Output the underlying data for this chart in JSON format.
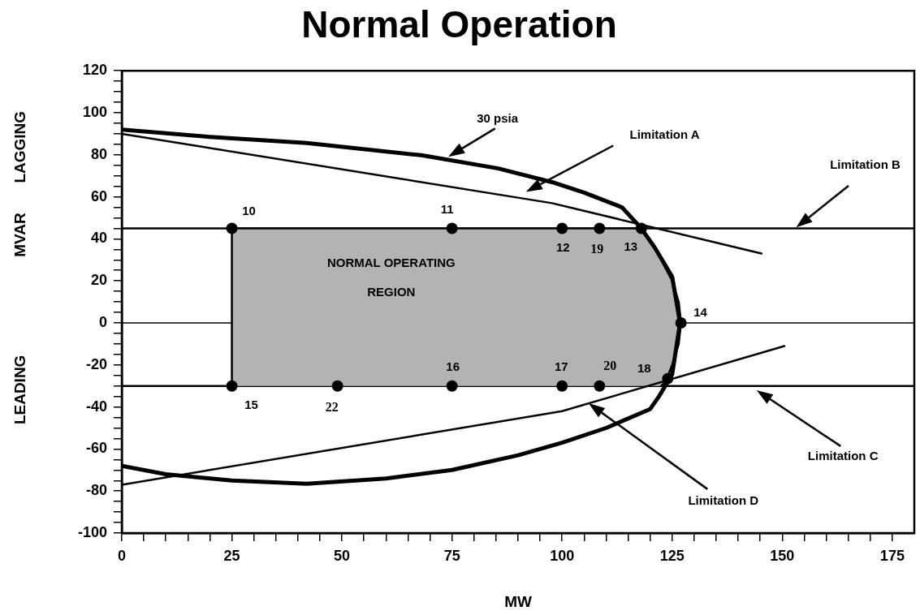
{
  "chart_data": {
    "type": "line",
    "title": "Normal Operation",
    "xlabel": "MW",
    "ylabel": "LAGGING MVAR LEADING",
    "xlim": [
      0,
      180
    ],
    "ylim": [
      -100,
      120
    ],
    "xticks": [
      0,
      {
        "value": 5,
        "label": null
      },
      {
        "value": 10,
        "label": null
      },
      {
        "value": 15,
        "label": null
      },
      {
        "value": 20,
        "label": null
      },
      25,
      {
        "value": 30,
        "label": null
      },
      {
        "value": 35,
        "label": null
      },
      {
        "value": 40,
        "label": null
      },
      {
        "value": 45,
        "label": null
      },
      50,
      {
        "value": 55,
        "label": null
      },
      {
        "value": 60,
        "label": null
      },
      {
        "value": 65,
        "label": null
      },
      {
        "value": 70,
        "label": null
      },
      75,
      {
        "value": 80,
        "label": null
      },
      {
        "value": 85,
        "label": null
      },
      {
        "value": 90,
        "label": null
      },
      {
        "value": 95,
        "label": null
      },
      100,
      {
        "value": 105,
        "label": null
      },
      {
        "value": 110,
        "label": null
      },
      {
        "value": 115,
        "label": null
      },
      {
        "value": 120,
        "label": null
      },
      125,
      {
        "value": 130,
        "label": null
      },
      {
        "value": 135,
        "label": null
      },
      {
        "value": 140,
        "label": null
      },
      {
        "value": 145,
        "label": null
      },
      150,
      {
        "value": 155,
        "label": null
      },
      {
        "value": 160,
        "label": null
      },
      {
        "value": 165,
        "label": null
      },
      {
        "value": 170,
        "label": null
      },
      175
    ],
    "yticks": [
      -100,
      {
        "value": -95,
        "label": null
      },
      {
        "value": -90,
        "label": null
      },
      {
        "value": -85,
        "label": null
      },
      -80,
      {
        "value": -75,
        "label": null
      },
      {
        "value": -70,
        "label": null
      },
      {
        "value": -65,
        "label": null
      },
      -60,
      {
        "value": -55,
        "label": null
      },
      {
        "value": -50,
        "label": null
      },
      {
        "value": -45,
        "label": null
      },
      -40,
      {
        "value": -35,
        "label": null
      },
      {
        "value": -30,
        "label": null
      },
      {
        "value": -25,
        "label": null
      },
      -20,
      {
        "value": -15,
        "label": null
      },
      {
        "value": -10,
        "label": null
      },
      {
        "value": -5,
        "label": null
      },
      0,
      {
        "value": 5,
        "label": null
      },
      {
        "value": 10,
        "label": null
      },
      {
        "value": 15,
        "label": null
      },
      20,
      {
        "value": 25,
        "label": null
      },
      {
        "value": 30,
        "label": null
      },
      {
        "value": 35,
        "label": null
      },
      40,
      {
        "value": 45,
        "label": null
      },
      {
        "value": 50,
        "label": null
      },
      {
        "value": 55,
        "label": null
      },
      60,
      {
        "value": 65,
        "label": null
      },
      {
        "value": 70,
        "label": null
      },
      {
        "value": 75,
        "label": null
      },
      80,
      {
        "value": 85,
        "label": null
      },
      {
        "value": 90,
        "label": null
      },
      {
        "value": 95,
        "label": null
      },
      100,
      {
        "value": 105,
        "label": null
      },
      {
        "value": 110,
        "label": null
      },
      {
        "value": 115,
        "label": null
      },
      120
    ],
    "series": [
      {
        "type": "area",
        "color": "#b3b3b3",
        "x": [
          25,
          25,
          118,
          121,
          123,
          125,
          126.5,
          127,
          126.5,
          125,
          123.5,
          122.5
        ],
        "values": [
          -30,
          45,
          45,
          36,
          28,
          20,
          10,
          0,
          -10,
          -20,
          -28,
          -30
        ]
      },
      {
        "type": "line",
        "color": "#000000",
        "x": [
          0,
          20,
          42,
          68,
          85.5,
          97.7,
          105,
          113.6,
          117.8,
          121,
          125,
          126.8,
          125,
          124,
          122,
          120,
          110,
          100,
          90,
          75,
          60,
          42,
          25,
          10,
          0
        ],
        "values": [
          92,
          88.5,
          85.6,
          79.8,
          73.5,
          67,
          62,
          55,
          45.5,
          36,
          22,
          0,
          -24.5,
          -28,
          -35,
          -41,
          -50,
          -57,
          -63,
          -70,
          -74,
          -76.5,
          -75,
          -72,
          -68
        ]
      },
      {
        "type": "line",
        "color": "#000000",
        "x": [
          0,
          97.7,
          145.3
        ],
        "values": [
          90,
          57,
          33
        ]
      },
      {
        "type": "line",
        "color": "#000000",
        "x": [
          0,
          100,
          150.5
        ],
        "values": [
          -77,
          -42,
          -11
        ]
      },
      {
        "type": "scatter",
        "color": "#000000",
        "marker": "circle",
        "x": [
          25,
          75,
          100,
          108.5,
          118,
          127,
          25,
          49,
          75,
          100,
          108.5,
          124
        ],
        "values": [
          45,
          45,
          45,
          45,
          45,
          0,
          -30,
          -30,
          -30,
          -30,
          -30,
          -26.5
        ]
      }
    ],
    "ref_lines": [
      {
        "axis": "y",
        "value": 0,
        "color": "#000000"
      },
      {
        "axis": "y",
        "value": 45,
        "color": "#000000"
      },
      {
        "axis": "y",
        "value": -30,
        "color": "#000000"
      }
    ],
    "annotations": [
      "30 psia",
      "Limitation A",
      "Limitation D",
      "NORMAL OPERATING REGION",
      {
        "text": "10",
        "x": 25,
        "y": 45
      },
      {
        "text": "11",
        "x": 75,
        "y": 45
      },
      {
        "text": "12",
        "x": 100,
        "y": 45
      },
      {
        "text": "19",
        "x": 108.5,
        "y": 45
      },
      {
        "text": "13",
        "x": 118,
        "y": 45
      },
      {
        "text": "14",
        "x": 127,
        "y": 0
      },
      {
        "text": "15",
        "x": 25,
        "y": -30
      },
      {
        "text": "22",
        "x": 49,
        "y": -30
      },
      {
        "text": "16",
        "x": 75,
        "y": -30
      },
      {
        "text": "17",
        "x": 100,
        "y": -30
      },
      {
        "text": "20",
        "x": 108.5,
        "y": -30
      },
      {
        "text": "18",
        "x": 124,
        "y": -26.5
      },
      "Limitation B",
      "Limitation C"
    ]
  }
}
